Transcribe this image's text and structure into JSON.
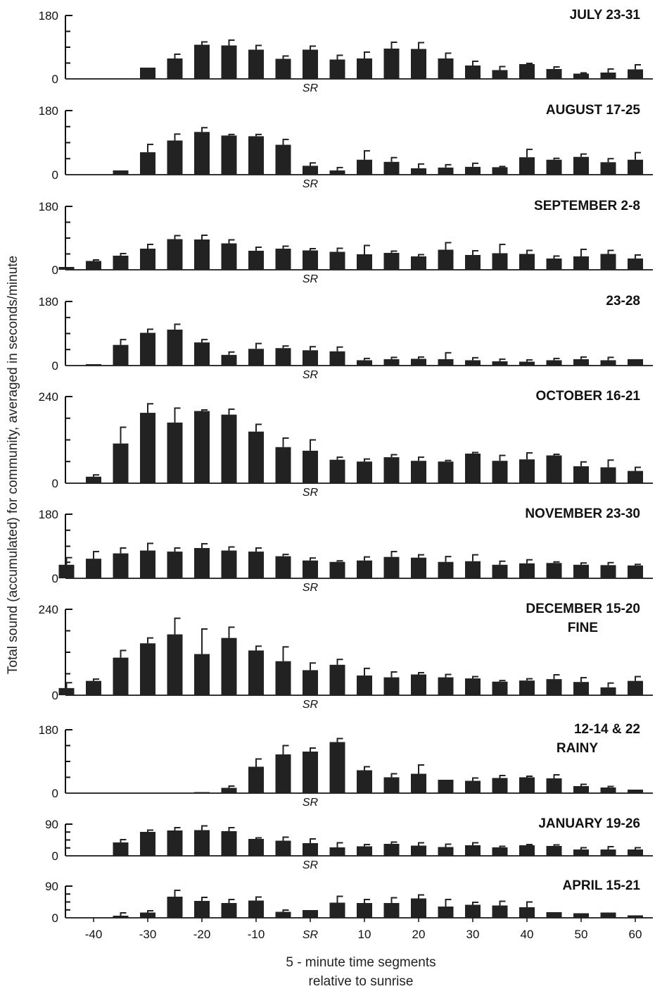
{
  "chart_data": {
    "type": "bar",
    "ylabel": "Total sound (accumulated) for community, averaged in seconds/minute",
    "xlabel_line1": "5 - minute time segments",
    "xlabel_line2": "relative to sunrise",
    "sr_label": "SR",
    "x_ticks": [
      {
        "value": -40,
        "label": "-40"
      },
      {
        "value": -30,
        "label": "-30"
      },
      {
        "value": -20,
        "label": "-20"
      },
      {
        "value": -10,
        "label": "-10"
      },
      {
        "value": 0,
        "label": "SR"
      },
      {
        "value": 10,
        "label": "10"
      },
      {
        "value": 20,
        "label": "20"
      },
      {
        "value": 30,
        "label": "30"
      },
      {
        "value": 40,
        "label": "40"
      },
      {
        "value": 50,
        "label": "50"
      },
      {
        "value": 60,
        "label": "60"
      }
    ],
    "x": [
      -45,
      -40,
      -35,
      -30,
      -25,
      -20,
      -15,
      -10,
      -5,
      0,
      5,
      10,
      15,
      20,
      25,
      30,
      35,
      40,
      45,
      50,
      55,
      60
    ],
    "panels": [
      {
        "title": [
          "JULY 23-31"
        ],
        "ylim": [
          0,
          180
        ],
        "yticks": [
          0,
          180
        ],
        "values": [
          0,
          0,
          0,
          32,
          58,
          97,
          95,
          83,
          57,
          83,
          55,
          58,
          86,
          85,
          58,
          38,
          25,
          42,
          28,
          15,
          18,
          27
        ],
        "errors": [
          0,
          0,
          0,
          0,
          12,
          8,
          15,
          12,
          8,
          10,
          12,
          18,
          18,
          18,
          15,
          12,
          10,
          2,
          6,
          2,
          10,
          13
        ],
        "sr_below": true
      },
      {
        "title": [
          "AUGUST 17-25"
        ],
        "ylim": [
          0,
          180
        ],
        "yticks": [
          0,
          180
        ],
        "values": [
          0,
          0,
          12,
          63,
          96,
          120,
          110,
          108,
          84,
          25,
          12,
          42,
          36,
          18,
          20,
          22,
          21,
          49,
          42,
          50,
          35,
          42
        ],
        "errors": [
          0,
          0,
          0,
          22,
          18,
          12,
          3,
          5,
          15,
          8,
          8,
          25,
          12,
          12,
          8,
          10,
          2,
          22,
          4,
          8,
          10,
          20
        ],
        "sr_below": true
      },
      {
        "title": [
          "SEPTEMBER 2-8"
        ],
        "ylim": [
          0,
          180
        ],
        "yticks": [
          0,
          180
        ],
        "values": [
          8,
          25,
          40,
          60,
          87,
          86,
          75,
          54,
          60,
          55,
          51,
          44,
          48,
          38,
          57,
          42,
          47,
          45,
          32,
          38,
          45,
          32
        ],
        "errors": [
          0,
          3,
          6,
          12,
          10,
          12,
          10,
          10,
          7,
          5,
          10,
          25,
          5,
          5,
          20,
          12,
          25,
          10,
          7,
          20,
          10,
          10
        ],
        "sr_below": true
      },
      {
        "title": [
          "23-28"
        ],
        "ylim": [
          0,
          180
        ],
        "yticks": [
          0,
          180
        ],
        "values": [
          0,
          4,
          58,
          92,
          101,
          65,
          30,
          47,
          49,
          43,
          40,
          15,
          18,
          19,
          18,
          15,
          12,
          11,
          15,
          18,
          15,
          18
        ],
        "errors": [
          0,
          0,
          15,
          10,
          15,
          8,
          8,
          15,
          6,
          10,
          12,
          5,
          5,
          5,
          18,
          7,
          6,
          5,
          5,
          6,
          8,
          0
        ],
        "sr_below": true
      },
      {
        "title": [
          "OCTOBER 16-21"
        ],
        "ylim": [
          0,
          240
        ],
        "yticks": [
          0,
          240
        ],
        "values": [
          0,
          18,
          110,
          195,
          168,
          200,
          190,
          143,
          100,
          90,
          65,
          60,
          72,
          62,
          60,
          82,
          62,
          66,
          77,
          47,
          44,
          34
        ],
        "errors": [
          0,
          5,
          45,
          25,
          40,
          3,
          15,
          20,
          25,
          30,
          7,
          7,
          7,
          10,
          3,
          3,
          15,
          18,
          3,
          12,
          20,
          10
        ],
        "sr_below": true
      },
      {
        "title": [
          "NOVEMBER 23-30"
        ],
        "ylim": [
          0,
          180
        ],
        "yticks": [
          0,
          180
        ],
        "values": [
          38,
          55,
          70,
          78,
          75,
          85,
          78,
          75,
          62,
          50,
          46,
          50,
          60,
          58,
          46,
          48,
          38,
          42,
          43,
          38,
          37,
          36
        ],
        "errors": [
          20,
          20,
          15,
          20,
          10,
          12,
          10,
          10,
          5,
          7,
          3,
          10,
          15,
          8,
          15,
          18,
          10,
          10,
          3,
          5,
          7,
          3
        ],
        "sr_below": true
      },
      {
        "title": [
          "DECEMBER 15-20",
          "FINE"
        ],
        "ylim": [
          0,
          240
        ],
        "yticks": [
          0,
          240
        ],
        "values": [
          20,
          40,
          105,
          145,
          170,
          115,
          160,
          125,
          95,
          70,
          85,
          55,
          50,
          58,
          50,
          47,
          38,
          41,
          45,
          37,
          22,
          40
        ],
        "errors": [
          15,
          5,
          20,
          15,
          45,
          70,
          30,
          12,
          40,
          20,
          15,
          20,
          15,
          5,
          8,
          5,
          3,
          5,
          12,
          12,
          12,
          12
        ],
        "sr_below": true
      },
      {
        "title": [
          "12-14 & 22",
          "RAINY"
        ],
        "ylim": [
          0,
          180
        ],
        "yticks": [
          0,
          180
        ],
        "values": [
          0,
          0,
          0,
          0,
          0,
          3,
          15,
          75,
          110,
          118,
          145,
          65,
          45,
          55,
          38,
          35,
          43,
          45,
          42,
          20,
          16,
          10
        ],
        "errors": [
          0,
          0,
          0,
          0,
          0,
          0,
          5,
          22,
          25,
          10,
          10,
          10,
          10,
          25,
          0,
          8,
          7,
          3,
          10,
          5,
          3,
          0
        ],
        "sr_below": true
      },
      {
        "title": [
          "JANUARY 19-26"
        ],
        "ylim": [
          0,
          90
        ],
        "yticks": [
          0,
          90
        ],
        "values": [
          0,
          0,
          38,
          68,
          72,
          73,
          70,
          48,
          43,
          36,
          24,
          27,
          34,
          29,
          25,
          30,
          24,
          30,
          28,
          18,
          18,
          18
        ],
        "errors": [
          0,
          0,
          8,
          5,
          8,
          12,
          10,
          3,
          10,
          12,
          13,
          5,
          5,
          8,
          8,
          7,
          3,
          2,
          3,
          5,
          8,
          5
        ],
        "sr_below": true
      },
      {
        "title": [
          "APRIL 15-21"
        ],
        "ylim": [
          0,
          90
        ],
        "yticks": [
          0,
          90
        ],
        "values": [
          0,
          0,
          6,
          15,
          60,
          48,
          42,
          49,
          17,
          22,
          43,
          42,
          42,
          55,
          32,
          37,
          35,
          30,
          16,
          13,
          15,
          7
        ],
        "errors": [
          0,
          0,
          8,
          5,
          18,
          10,
          10,
          10,
          5,
          0,
          18,
          10,
          15,
          10,
          20,
          7,
          12,
          15,
          0,
          0,
          0,
          0
        ],
        "sr_below": false
      }
    ]
  }
}
